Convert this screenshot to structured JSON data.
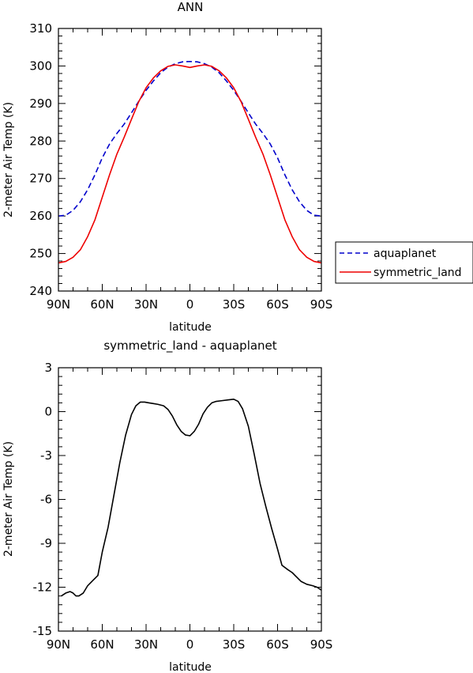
{
  "chart_data": [
    {
      "type": "line",
      "title": "ANN",
      "xlabel": "latitude",
      "ylabel": "2-meter Air Temp (K)",
      "xlim": [
        90,
        -90
      ],
      "ylim": [
        240,
        310
      ],
      "x_ticks": [
        90,
        60,
        30,
        0,
        -30,
        -60,
        -90
      ],
      "x_tick_labels": [
        "90N",
        "60N",
        "30N",
        "0",
        "30S",
        "60S",
        "90S"
      ],
      "y_ticks": [
        240,
        250,
        260,
        270,
        280,
        290,
        300,
        310
      ],
      "y_tick_labels": [
        "240",
        "250",
        "260",
        "270",
        "280",
        "290",
        "300",
        "310"
      ],
      "legend": "outside-right",
      "series": [
        {
          "name": "aquaplanet",
          "color": "#0000cc",
          "dash": "dashed",
          "x": [
            90,
            85,
            80,
            75,
            70,
            65,
            60,
            55,
            50,
            45,
            40,
            35,
            30,
            25,
            20,
            15,
            10,
            5,
            0,
            -5,
            -10,
            -15,
            -20,
            -25,
            -30,
            -35,
            -40,
            -45,
            -50,
            -55,
            -60,
            -65,
            -70,
            -75,
            -80,
            -85,
            -90
          ],
          "values": [
            260.0,
            260.2,
            261.5,
            263.8,
            267.0,
            271.0,
            275.5,
            279.2,
            282.0,
            284.5,
            287.5,
            290.6,
            293.5,
            296.0,
            298.2,
            299.7,
            300.6,
            301.1,
            301.2,
            301.1,
            300.6,
            299.7,
            298.2,
            296.0,
            293.5,
            290.6,
            287.5,
            284.5,
            282.0,
            279.2,
            275.5,
            271.0,
            267.0,
            263.8,
            261.5,
            260.2,
            260.0
          ]
        },
        {
          "name": "symmetric_land",
          "color": "#ee0000",
          "dash": "solid",
          "x": [
            90,
            85,
            80,
            75,
            70,
            65,
            60,
            55,
            50,
            45,
            40,
            35,
            30,
            25,
            20,
            15,
            10,
            5,
            0,
            -5,
            -10,
            -15,
            -20,
            -25,
            -30,
            -35,
            -40,
            -45,
            -50,
            -55,
            -60,
            -65,
            -70,
            -75,
            -80,
            -85,
            -90
          ],
          "values": [
            247.5,
            247.9,
            249.0,
            251.0,
            254.5,
            259.0,
            265.0,
            271.0,
            276.5,
            281.0,
            285.8,
            290.5,
            294.2,
            296.8,
            298.7,
            299.9,
            300.3,
            300.0,
            299.6,
            300.0,
            300.3,
            299.9,
            298.7,
            296.8,
            294.2,
            290.5,
            285.8,
            281.0,
            276.5,
            271.0,
            265.0,
            259.0,
            254.5,
            251.0,
            249.0,
            247.9,
            247.5
          ]
        }
      ]
    },
    {
      "type": "line",
      "title": "symmetric_land - aquaplanet",
      "xlabel": "latitude",
      "ylabel": "2-meter Air Temp (K)",
      "xlim": [
        90,
        -90
      ],
      "ylim": [
        -15,
        3
      ],
      "x_ticks": [
        90,
        60,
        30,
        0,
        -30,
        -60,
        -90
      ],
      "x_tick_labels": [
        "90N",
        "60N",
        "30N",
        "0",
        "30S",
        "60S",
        "90S"
      ],
      "y_ticks": [
        -15,
        -12,
        -9,
        -6,
        -3,
        0,
        3
      ],
      "y_tick_labels": [
        "-15",
        "-12",
        "-9",
        "-6",
        "-3",
        "0",
        "3"
      ],
      "series": [
        {
          "color": "#000000",
          "dash": "solid",
          "x": [
            88,
            85,
            82,
            80,
            78,
            76,
            73,
            70,
            67,
            63,
            60,
            56,
            52,
            48,
            44,
            40,
            37,
            34,
            31,
            28,
            25,
            22,
            18,
            15,
            12,
            9,
            6,
            3,
            0,
            -3,
            -6,
            -9,
            -12,
            -15,
            -18,
            -22,
            -26,
            -30,
            -33,
            -36,
            -40,
            -44,
            -48,
            -52,
            -56,
            -60,
            -63,
            -67,
            -70,
            -73,
            -76,
            -80,
            -84,
            -87,
            -90
          ],
          "values": [
            -12.6,
            -12.4,
            -12.3,
            -12.4,
            -12.6,
            -12.6,
            -12.4,
            -11.9,
            -11.6,
            -11.2,
            -9.6,
            -7.9,
            -5.7,
            -3.5,
            -1.6,
            -0.2,
            0.4,
            0.65,
            0.65,
            0.6,
            0.55,
            0.5,
            0.4,
            0.15,
            -0.3,
            -0.9,
            -1.35,
            -1.6,
            -1.65,
            -1.35,
            -0.85,
            -0.15,
            0.3,
            0.6,
            0.7,
            0.75,
            0.8,
            0.85,
            0.7,
            0.2,
            -1.0,
            -2.9,
            -4.9,
            -6.5,
            -8.0,
            -9.4,
            -10.5,
            -10.8,
            -11.0,
            -11.3,
            -11.6,
            -11.8,
            -11.9,
            -12.0,
            -12.2
          ]
        }
      ]
    }
  ]
}
